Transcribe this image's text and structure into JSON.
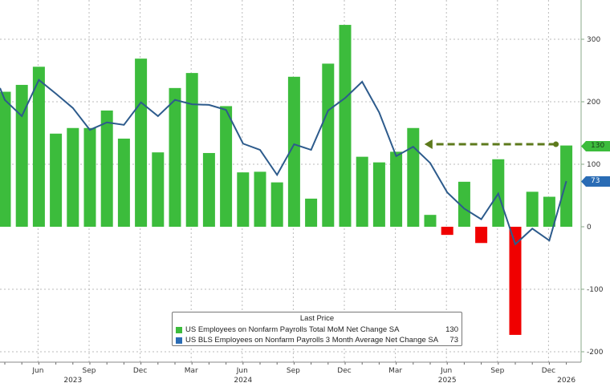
{
  "chart_data": {
    "type": "bar",
    "months": [
      "Apr 2023",
      "May 2023",
      "Jun 2023",
      "Jul 2023",
      "Aug 2023",
      "Sep 2023",
      "Oct 2023",
      "Nov 2023",
      "Dec 2023",
      "Jan 2024",
      "Feb 2024",
      "Mar 2024",
      "Apr 2024",
      "May 2024",
      "Jun 2024",
      "Jul 2024",
      "Aug 2024",
      "Sep 2024",
      "Oct 2024",
      "Nov 2024",
      "Dec 2024",
      "Jan 2025",
      "Feb 2025",
      "Mar 2025",
      "Apr 2025",
      "May 2025",
      "Jun 2025",
      "Jul 2025",
      "Aug 2025",
      "Sep 2025",
      "Oct 2025",
      "Nov 2025",
      "Dec 2025",
      "Jan 2026"
    ],
    "series": [
      {
        "name": "US Employees on Nonfarm Payrolls Total MoM Net Change SA",
        "type": "bar",
        "last": "130",
        "values": [
          216,
          227,
          256,
          149,
          158,
          158,
          186,
          141,
          269,
          119,
          222,
          246,
          118,
          193,
          87,
          88,
          71,
          240,
          45,
          261,
          323,
          112,
          103,
          120,
          158,
          19,
          -13,
          72,
          -26,
          108,
          -173,
          56,
          48,
          130
        ]
      },
      {
        "name": "US BLS Employees on Nonfarm Payrolls 3 Month Average Net Change SA",
        "type": "line",
        "last": "73",
        "values": [
          203,
          177,
          235,
          213,
          190,
          155,
          167,
          163,
          199,
          177,
          203,
          196,
          195,
          187,
          133,
          123,
          83,
          132,
          123,
          186,
          206,
          232,
          183,
          113,
          128,
          102,
          55,
          29,
          12,
          53,
          -28,
          -3,
          -22,
          73
        ]
      }
    ],
    "y_ticks": [
      "300",
      "200",
      "100",
      "0",
      "-100",
      "-200"
    ],
    "ylim": [
      -215,
      362
    ],
    "x_ticks": [
      {
        "label": "Jun",
        "month": "Jun 2023"
      },
      {
        "label": "Sep",
        "month": "Sep 2023"
      },
      {
        "label": "Dec",
        "month": "Dec 2023"
      },
      {
        "label": "Mar",
        "month": "Mar 2024"
      },
      {
        "label": "Jun",
        "month": "Jun 2024"
      },
      {
        "label": "Sep",
        "month": "Sep 2024"
      },
      {
        "label": "Dec",
        "month": "Dec 2024"
      },
      {
        "label": "Mar",
        "month": "Mar 2025"
      },
      {
        "label": "Jun",
        "month": "Jun 2025"
      },
      {
        "label": "Sep",
        "month": "Sep 2025"
      },
      {
        "label": "Dec",
        "month": "Dec 2025"
      }
    ],
    "year_labels": [
      {
        "label": "2023",
        "month": "Aug 2023"
      },
      {
        "label": "2024",
        "month": "Jun 2024"
      },
      {
        "label": "2025",
        "month": "Jun 2025"
      },
      {
        "label": "2026",
        "month": "Jan 2026"
      }
    ],
    "annotation": {
      "type": "dashed-arrow",
      "from_month": "Jan 2026",
      "to_month": "Apr 2025",
      "value": 132
    },
    "grid": true,
    "legend": {
      "title": "Last Price",
      "placement": "bottom-center"
    },
    "colors": {
      "positive_bar": "#3cbc3c",
      "negative_bar": "#f00000",
      "line": "#2d5b8c",
      "line_tag": "#2a6cb5",
      "arrow": "#5d7a1c",
      "axis": "#8aa88a"
    }
  }
}
